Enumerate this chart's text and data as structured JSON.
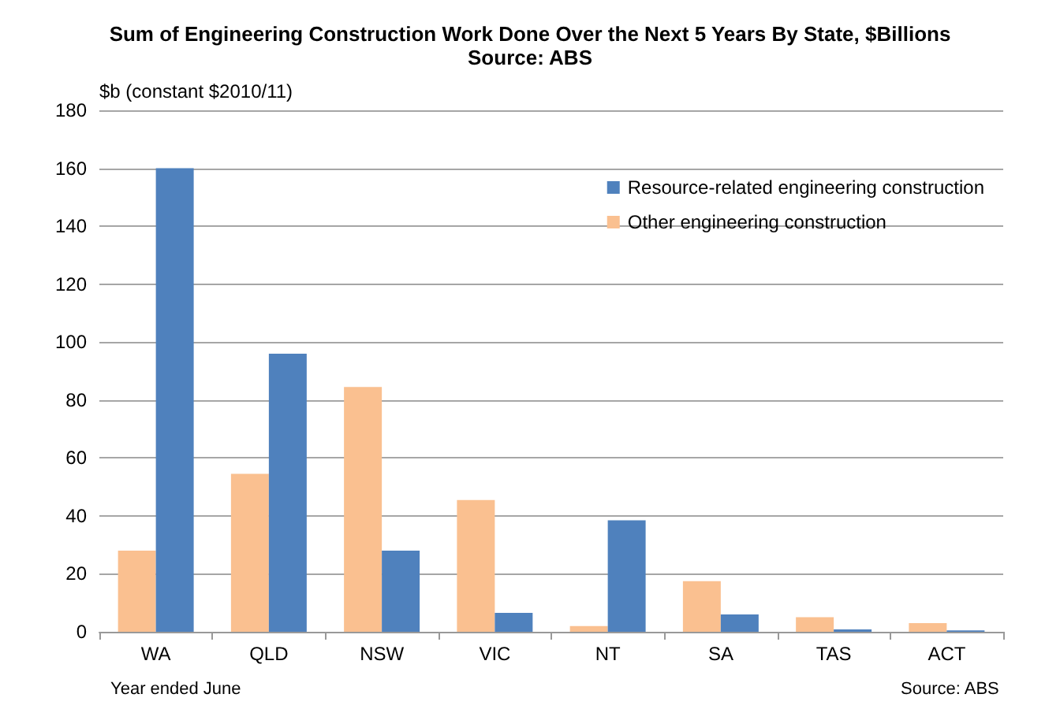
{
  "chart_data": {
    "type": "bar",
    "title": "Sum of Engineering Construction Work Done Over the Next 5 Years By State, $Billions",
    "subtitle": "Source: ABS",
    "ylabel": "$b (constant $2010/11)",
    "categories": [
      "WA",
      "QLD",
      "NSW",
      "VIC",
      "NT",
      "SA",
      "TAS",
      "ACT"
    ],
    "series": [
      {
        "name": "Other engineering construction",
        "color": "#fac090",
        "values": [
          28,
          54.5,
          84.5,
          45.5,
          2,
          17.5,
          5,
          3
        ]
      },
      {
        "name": "Resource-related engineering construction",
        "color": "#4f81bd",
        "values": [
          160,
          96,
          28,
          6.5,
          38.5,
          6,
          0.8,
          0.5
        ]
      }
    ],
    "ylim": [
      0,
      180
    ],
    "yticks": [
      0,
      20,
      40,
      60,
      80,
      100,
      120,
      140,
      160,
      180
    ],
    "grid": "y",
    "legend": "top right",
    "annotations": [
      "Year ended June",
      "Source: ABS"
    ]
  }
}
